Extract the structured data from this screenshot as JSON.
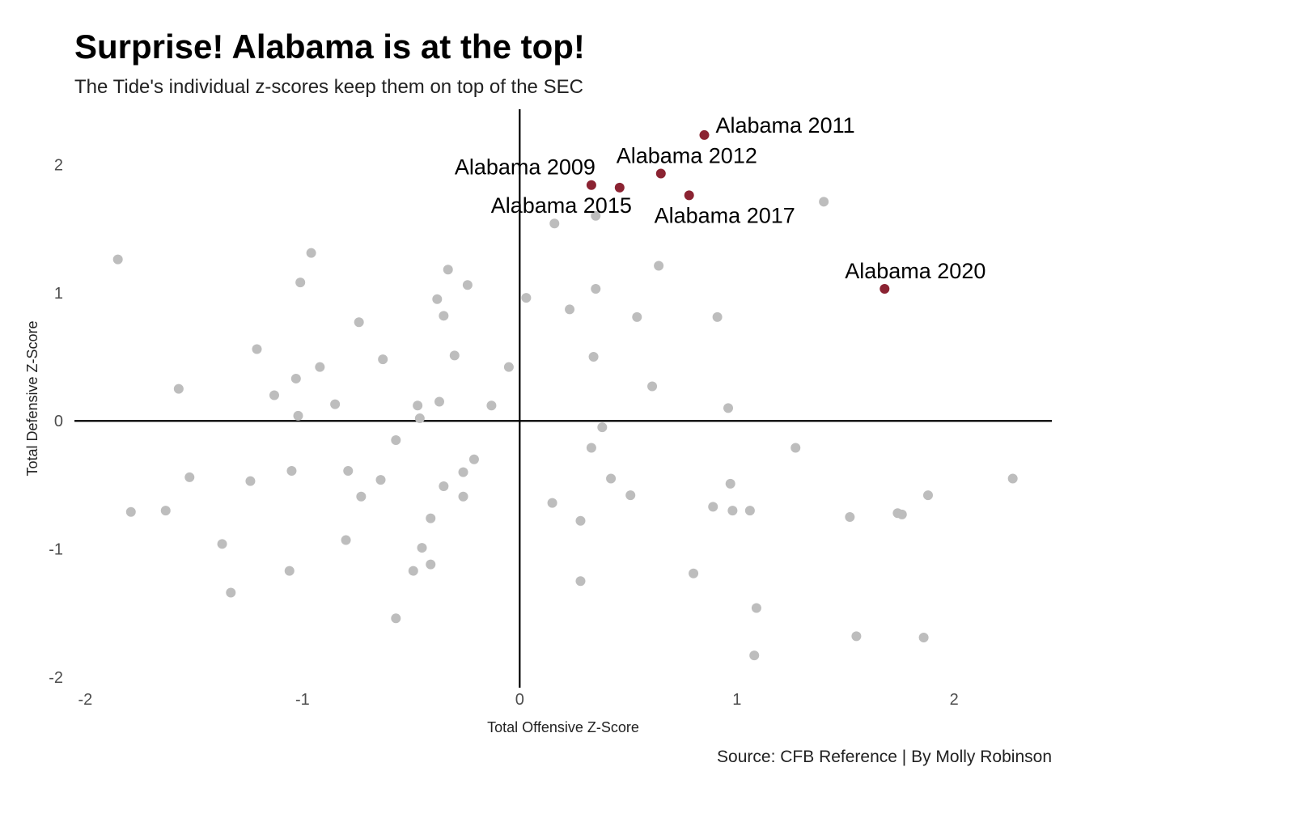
{
  "chart_data": {
    "type": "scatter",
    "title": "Surprise! Alabama is at the top!",
    "subtitle": "The Tide's individual z-scores keep them on top of the SEC",
    "xlabel": "Total Offensive Z-Score",
    "ylabel": "Total Defensive Z-Score",
    "caption": "Source: CFB Reference | By Molly Robinson",
    "xlim": [
      -2.05,
      2.45
    ],
    "ylim": [
      -2.05,
      2.4
    ],
    "x_ticks": [
      -2,
      -1,
      0,
      1,
      2
    ],
    "y_ticks": [
      -2,
      -1,
      0,
      1,
      2
    ],
    "grid": false,
    "reference_lines": {
      "x": 0,
      "y": 0
    },
    "colors": {
      "highlight": "#8b2332",
      "other": "#bdbdbd",
      "reference_line": "#000000"
    },
    "highlight_points": [
      {
        "label": "Alabama 2011",
        "x": 0.85,
        "y": 2.23
      },
      {
        "label": "Alabama 2012",
        "x": 0.65,
        "y": 1.93
      },
      {
        "label": "Alabama 2009",
        "x": 0.33,
        "y": 1.84
      },
      {
        "label": "Alabama 2015",
        "x": 0.46,
        "y": 1.82
      },
      {
        "label": "Alabama 2017",
        "x": 0.78,
        "y": 1.76
      },
      {
        "label": "Alabama 2020",
        "x": 1.68,
        "y": 1.03
      }
    ],
    "other_points": [
      {
        "x": -1.85,
        "y": 1.26
      },
      {
        "x": -0.96,
        "y": 1.31
      },
      {
        "x": -1.01,
        "y": 1.08
      },
      {
        "x": -0.33,
        "y": 1.18
      },
      {
        "x": -0.24,
        "y": 1.06
      },
      {
        "x": -0.38,
        "y": 0.95
      },
      {
        "x": -0.35,
        "y": 0.82
      },
      {
        "x": -0.74,
        "y": 0.77
      },
      {
        "x": -1.21,
        "y": 0.56
      },
      {
        "x": -0.63,
        "y": 0.48
      },
      {
        "x": -0.3,
        "y": 0.51
      },
      {
        "x": -0.92,
        "y": 0.42
      },
      {
        "x": -1.03,
        "y": 0.33
      },
      {
        "x": -1.57,
        "y": 0.25
      },
      {
        "x": -1.13,
        "y": 0.2
      },
      {
        "x": -0.85,
        "y": 0.13
      },
      {
        "x": -0.47,
        "y": 0.12
      },
      {
        "x": -0.37,
        "y": 0.15
      },
      {
        "x": -1.02,
        "y": 0.04
      },
      {
        "x": -0.46,
        "y": 0.02
      },
      {
        "x": -0.13,
        "y": 0.12
      },
      {
        "x": -0.05,
        "y": 0.42
      },
      {
        "x": 0.03,
        "y": 0.96
      },
      {
        "x": 0.16,
        "y": 1.54
      },
      {
        "x": 0.35,
        "y": 1.6
      },
      {
        "x": 0.64,
        "y": 1.21
      },
      {
        "x": 0.35,
        "y": 1.03
      },
      {
        "x": 0.23,
        "y": 0.87
      },
      {
        "x": 0.54,
        "y": 0.81
      },
      {
        "x": 0.91,
        "y": 0.81
      },
      {
        "x": 1.4,
        "y": 1.71
      },
      {
        "x": 0.34,
        "y": 0.5
      },
      {
        "x": 0.61,
        "y": 0.27
      },
      {
        "x": 0.96,
        "y": 0.1
      },
      {
        "x": 0.38,
        "y": -0.05
      },
      {
        "x": 0.33,
        "y": -0.21
      },
      {
        "x": 1.27,
        "y": -0.21
      },
      {
        "x": -0.57,
        "y": -0.15
      },
      {
        "x": -0.21,
        "y": -0.3
      },
      {
        "x": -0.26,
        "y": -0.4
      },
      {
        "x": -1.52,
        "y": -0.44
      },
      {
        "x": -1.24,
        "y": -0.47
      },
      {
        "x": -1.05,
        "y": -0.39
      },
      {
        "x": -0.79,
        "y": -0.39
      },
      {
        "x": -0.64,
        "y": -0.46
      },
      {
        "x": -0.73,
        "y": -0.59
      },
      {
        "x": -0.35,
        "y": -0.51
      },
      {
        "x": -0.26,
        "y": -0.59
      },
      {
        "x": 0.42,
        "y": -0.45
      },
      {
        "x": 0.51,
        "y": -0.58
      },
      {
        "x": 0.97,
        "y": -0.49
      },
      {
        "x": 0.15,
        "y": -0.64
      },
      {
        "x": 0.89,
        "y": -0.67
      },
      {
        "x": 0.98,
        "y": -0.7
      },
      {
        "x": 1.06,
        "y": -0.7
      },
      {
        "x": 1.52,
        "y": -0.75
      },
      {
        "x": 1.74,
        "y": -0.72
      },
      {
        "x": 1.76,
        "y": -0.73
      },
      {
        "x": 1.88,
        "y": -0.58
      },
      {
        "x": 2.27,
        "y": -0.45
      },
      {
        "x": 0.28,
        "y": -0.78
      },
      {
        "x": -1.79,
        "y": -0.71
      },
      {
        "x": -1.63,
        "y": -0.7
      },
      {
        "x": -0.41,
        "y": -0.76
      },
      {
        "x": -0.8,
        "y": -0.93
      },
      {
        "x": -1.37,
        "y": -0.96
      },
      {
        "x": -0.45,
        "y": -0.99
      },
      {
        "x": -1.06,
        "y": -1.17
      },
      {
        "x": -0.49,
        "y": -1.17
      },
      {
        "x": -0.41,
        "y": -1.12
      },
      {
        "x": 0.28,
        "y": -1.25
      },
      {
        "x": 0.8,
        "y": -1.19
      },
      {
        "x": -1.33,
        "y": -1.34
      },
      {
        "x": -0.57,
        "y": -1.54
      },
      {
        "x": 1.09,
        "y": -1.46
      },
      {
        "x": 1.55,
        "y": -1.68
      },
      {
        "x": 1.86,
        "y": -1.69
      },
      {
        "x": 1.08,
        "y": -1.83
      }
    ]
  }
}
